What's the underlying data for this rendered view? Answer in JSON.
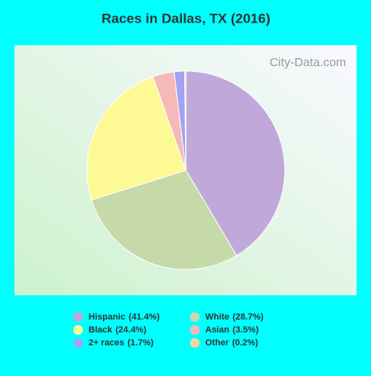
{
  "chart_data": {
    "type": "pie",
    "title": "Races in Dallas, TX (2016)",
    "watermark": "City-Data.com",
    "categories": [
      "Hispanic",
      "White",
      "Black",
      "Asian",
      "2+ races",
      "Other"
    ],
    "values": [
      41.4,
      28.7,
      24.4,
      3.5,
      1.7,
      0.2
    ],
    "value_labels": [
      "(41.4%)",
      "(28.7%)",
      "(24.4%)",
      "(3.5%)",
      "(1.7%)",
      "(0.2%)"
    ],
    "colors": [
      "#c0a9da",
      "#c6d9a9",
      "#fdf994",
      "#f4b9b9",
      "#a3a3f2",
      "#f6d3a6"
    ]
  }
}
